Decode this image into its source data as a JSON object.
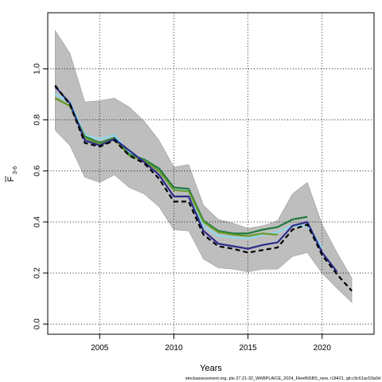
{
  "chart_data": {
    "type": "line",
    "xlabel": "Years",
    "ylabel_main": "F",
    "ylabel_sub": "3-6",
    "xlim": [
      2001.5,
      2023.5
    ],
    "ylim": [
      -0.04,
      1.22
    ],
    "x_ticks": [
      2005,
      2010,
      2015,
      2020
    ],
    "y_ticks": [
      0.0,
      0.2,
      0.4,
      0.6,
      0.8,
      1.0
    ],
    "y_tick_labels": [
      "0.0",
      "0.2",
      "0.4",
      "0.6",
      "0.8",
      "1.0"
    ],
    "grid": "dotted",
    "band": {
      "x": [
        2002,
        2003,
        2004,
        2005,
        2006,
        2007,
        2008,
        2009,
        2010,
        2011,
        2012,
        2013,
        2014,
        2015,
        2016,
        2017,
        2018,
        2019,
        2020,
        2021,
        2022
      ],
      "upper": [
        1.15,
        1.06,
        0.87,
        0.875,
        0.885,
        0.85,
        0.795,
        0.72,
        0.615,
        0.625,
        0.465,
        0.41,
        0.395,
        0.375,
        0.385,
        0.405,
        0.51,
        0.555,
        0.39,
        0.28,
        0.18
      ],
      "lower": [
        0.76,
        0.7,
        0.575,
        0.555,
        0.585,
        0.535,
        0.51,
        0.46,
        0.37,
        0.365,
        0.255,
        0.22,
        0.215,
        0.205,
        0.215,
        0.215,
        0.265,
        0.28,
        0.2,
        0.14,
        0.085
      ],
      "color": "#bebebe"
    },
    "series": [
      {
        "color": "#8ed9e8",
        "x": [
          2002,
          2003,
          2004,
          2005,
          2006,
          2007,
          2008,
          2009,
          2010,
          2011,
          2012,
          2013,
          2014,
          2015,
          2016,
          2017,
          2018,
          2019,
          2020
        ],
        "values": [
          0.9,
          0.87,
          0.74,
          0.725,
          0.74,
          0.67,
          0.645,
          0.61,
          0.525,
          0.525,
          0.385,
          0.345,
          0.34,
          0.335,
          0.35,
          0.36,
          0.385,
          0.385,
          0.3
        ]
      },
      {
        "color": "#1f7a3e",
        "x": [
          2002,
          2003,
          2004,
          2005,
          2006,
          2007,
          2008,
          2009,
          2010,
          2011,
          2012,
          2013,
          2014,
          2015,
          2016,
          2017,
          2018,
          2019
        ],
        "values": [
          0.885,
          0.855,
          0.735,
          0.71,
          0.73,
          0.665,
          0.645,
          0.61,
          0.535,
          0.53,
          0.405,
          0.365,
          0.355,
          0.355,
          0.37,
          0.38,
          0.41,
          0.42
        ]
      },
      {
        "color": "#6a9a2a",
        "x": [
          2002,
          2003,
          2004,
          2005,
          2006,
          2007,
          2008,
          2009,
          2010,
          2011,
          2012,
          2013,
          2014,
          2015,
          2016,
          2017
        ],
        "values": [
          0.885,
          0.855,
          0.73,
          0.705,
          0.725,
          0.66,
          0.64,
          0.6,
          0.525,
          0.52,
          0.4,
          0.36,
          0.35,
          0.345,
          0.355,
          0.35
        ]
      },
      {
        "color": "#2b2b8c",
        "x": [
          2002,
          2003,
          2004,
          2005,
          2006,
          2007,
          2008,
          2009,
          2010,
          2011,
          2012,
          2013,
          2014,
          2015,
          2016,
          2017,
          2018,
          2019,
          2020,
          2021
        ],
        "values": [
          0.93,
          0.865,
          0.72,
          0.7,
          0.725,
          0.68,
          0.635,
          0.585,
          0.5,
          0.5,
          0.365,
          0.315,
          0.305,
          0.295,
          0.31,
          0.32,
          0.385,
          0.4,
          0.28,
          0.205
        ]
      },
      {
        "color": "#000000",
        "dashed": true,
        "x": [
          2002,
          2003,
          2004,
          2005,
          2006,
          2007,
          2008,
          2009,
          2010,
          2011,
          2012,
          2013,
          2014,
          2015,
          2016,
          2017,
          2018,
          2019,
          2020,
          2021,
          2022
        ],
        "values": [
          0.935,
          0.86,
          0.71,
          0.695,
          0.72,
          0.66,
          0.63,
          0.57,
          0.48,
          0.48,
          0.35,
          0.305,
          0.295,
          0.28,
          0.29,
          0.3,
          0.37,
          0.39,
          0.27,
          0.195,
          0.13
        ]
      }
    ],
    "footer": "stockassessment.org, ple.27.21-32_WKBPLAICE_2024_FleetNSBS_new, r18421, git:c9c61ac53a0d"
  }
}
